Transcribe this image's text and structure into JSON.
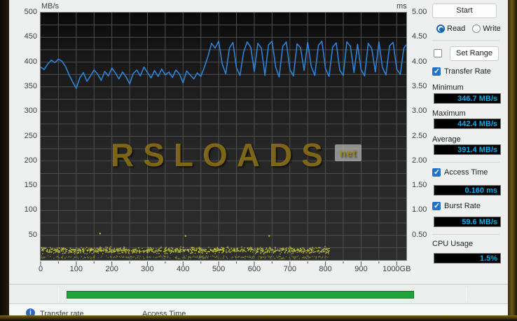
{
  "panel": {
    "start_button": "Start",
    "read_label": "Read",
    "write_label": "Write",
    "read_selected": true,
    "set_range_button": "Set Range",
    "set_range_checked": false,
    "metrics": {
      "transfer_rate": {
        "label": "Transfer Rate",
        "checked": true,
        "minimum_label": "Minimum",
        "minimum": "346.7 MB/s",
        "maximum_label": "Maximum",
        "maximum": "442.4 MB/s",
        "average_label": "Average",
        "average": "391.4 MB/s"
      },
      "access_time": {
        "label": "Access Time",
        "checked": true,
        "value": "0.160 ms"
      },
      "burst_rate": {
        "label": "Burst Rate",
        "checked": true,
        "value": "59.6 MB/s"
      },
      "cpu_usage": {
        "label": "CPU Usage",
        "value": "1.5%"
      }
    }
  },
  "watermark": {
    "text": "RSLOADS",
    "badge": "net"
  },
  "statusbar": {
    "progress_percent": 87
  },
  "footer": {
    "info_icon": "i",
    "left_text": "Transfer rate",
    "right_text": "Access Time"
  },
  "colors": {
    "transfer_line": "#2e82d8",
    "access_dots": "#c3c53a",
    "value_text": "#00aeef",
    "progress_green": "#1ea33b",
    "grid": "#4e4e4e"
  },
  "chart_data": {
    "type": "line",
    "title": "",
    "y_left": {
      "label": "MB/s",
      "min": 0,
      "max": 500,
      "ticks": [
        500,
        450,
        400,
        350,
        300,
        250,
        200,
        150,
        100,
        50
      ]
    },
    "y_right": {
      "label": "ms",
      "min": 0,
      "max": 5,
      "ticks": [
        "5.00",
        "4.50",
        "4.00",
        "3.50",
        "3.00",
        "2.50",
        "2.00",
        "1.50",
        "1.00",
        "0.50"
      ]
    },
    "x_axis": {
      "min": 0,
      "max": 1027,
      "tick_values": [
        0,
        100,
        200,
        300,
        400,
        500,
        600,
        700,
        800,
        900,
        1000
      ],
      "tick_labels": [
        "0",
        "100",
        "200",
        "300",
        "400",
        "500",
        "600",
        "700",
        "800",
        "900",
        "1000GB"
      ]
    },
    "grid": {
      "x_step": 50,
      "y_step": 25
    },
    "series": [
      {
        "name": "transfer-rate",
        "unit": "MB/s",
        "points": [
          [
            0,
            390
          ],
          [
            10,
            385
          ],
          [
            20,
            396
          ],
          [
            30,
            404
          ],
          [
            40,
            399
          ],
          [
            50,
            406
          ],
          [
            60,
            402
          ],
          [
            70,
            391
          ],
          [
            80,
            374
          ],
          [
            90,
            360
          ],
          [
            100,
            347
          ],
          [
            110,
            368
          ],
          [
            120,
            379
          ],
          [
            130,
            361
          ],
          [
            140,
            372
          ],
          [
            150,
            384
          ],
          [
            160,
            376
          ],
          [
            170,
            363
          ],
          [
            180,
            381
          ],
          [
            190,
            372
          ],
          [
            200,
            388
          ],
          [
            210,
            378
          ],
          [
            220,
            366
          ],
          [
            230,
            380
          ],
          [
            240,
            370
          ],
          [
            250,
            356
          ],
          [
            260,
            377
          ],
          [
            270,
            384
          ],
          [
            280,
            372
          ],
          [
            290,
            390
          ],
          [
            300,
            379
          ],
          [
            310,
            368
          ],
          [
            320,
            383
          ],
          [
            330,
            371
          ],
          [
            340,
            386
          ],
          [
            350,
            374
          ],
          [
            360,
            380
          ],
          [
            370,
            369
          ],
          [
            380,
            384
          ],
          [
            390,
            376
          ],
          [
            400,
            358
          ],
          [
            410,
            382
          ],
          [
            420,
            374
          ],
          [
            430,
            366
          ],
          [
            440,
            378
          ],
          [
            450,
            371
          ],
          [
            460,
            390
          ],
          [
            470,
            412
          ],
          [
            480,
            438
          ],
          [
            490,
            428
          ],
          [
            500,
            442
          ],
          [
            510,
            396
          ],
          [
            520,
            376
          ],
          [
            530,
            428
          ],
          [
            540,
            440
          ],
          [
            550,
            388
          ],
          [
            560,
            373
          ],
          [
            570,
            420
          ],
          [
            580,
            441
          ],
          [
            590,
            430
          ],
          [
            600,
            381
          ],
          [
            610,
            438
          ],
          [
            620,
            428
          ],
          [
            630,
            373
          ],
          [
            640,
            435
          ],
          [
            650,
            442
          ],
          [
            660,
            390
          ],
          [
            670,
            370
          ],
          [
            680,
            432
          ],
          [
            690,
            441
          ],
          [
            700,
            385
          ],
          [
            710,
            372
          ],
          [
            720,
            437
          ],
          [
            730,
            429
          ],
          [
            740,
            383
          ],
          [
            750,
            440
          ],
          [
            760,
            391
          ],
          [
            770,
            373
          ],
          [
            780,
            434
          ],
          [
            790,
            442
          ],
          [
            800,
            387
          ],
          [
            810,
            371
          ],
          [
            820,
            430
          ],
          [
            830,
            439
          ],
          [
            840,
            384
          ],
          [
            850,
            373
          ],
          [
            860,
            441
          ],
          [
            870,
            432
          ],
          [
            880,
            379
          ],
          [
            890,
            436
          ],
          [
            900,
            385
          ],
          [
            910,
            372
          ],
          [
            920,
            438
          ],
          [
            930,
            427
          ],
          [
            940,
            380
          ],
          [
            950,
            441
          ],
          [
            960,
            389
          ],
          [
            970,
            374
          ],
          [
            980,
            433
          ],
          [
            990,
            440
          ],
          [
            1000,
            386
          ],
          [
            1010,
            375
          ],
          [
            1020,
            428
          ],
          [
            1027,
            435
          ]
        ]
      },
      {
        "name": "access-time",
        "unit": "ms",
        "band": {
          "x_min": 0,
          "x_max": 810,
          "ms_min": 0.13,
          "ms_max": 0.28,
          "count": 1000,
          "seed": 42
        },
        "sub_band": {
          "x_min": 0,
          "x_max": 810,
          "ms_min": 0.03,
          "ms_max": 0.1,
          "count": 320,
          "seed": 7
        },
        "stray": [
          [
            165,
            0.55
          ],
          [
            405,
            0.5
          ],
          [
            640,
            0.5
          ]
        ]
      }
    ]
  }
}
